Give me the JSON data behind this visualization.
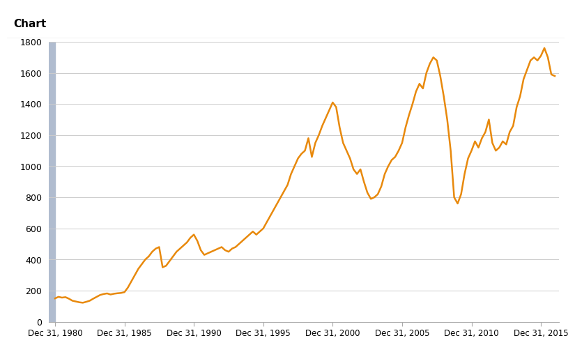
{
  "title": "Chart",
  "title_fontsize": 11,
  "line_color": "#E8890C",
  "line_width": 1.8,
  "background_color": "#FFFFFF",
  "plot_bg_color": "#FFFFFF",
  "header_bg_color": "#E2E6EA",
  "grid_color": "#CCCCCC",
  "ylim": [
    0,
    1800
  ],
  "yticks": [
    0,
    200,
    400,
    600,
    800,
    1000,
    1200,
    1400,
    1600,
    1800
  ],
  "xtick_labels": [
    "Dec 31, 1980",
    "Dec 31, 1985",
    "Dec 31, 1990",
    "Dec 31, 1995",
    "Dec 31, 2000",
    "Dec 31, 2005",
    "Dec 31, 2010",
    "Dec 31, 2015"
  ],
  "left_bar_color": "#B0BCCF",
  "years": [
    1980.0,
    1980.25,
    1980.5,
    1980.75,
    1981.0,
    1981.25,
    1981.5,
    1981.75,
    1982.0,
    1982.25,
    1982.5,
    1982.75,
    1983.0,
    1983.25,
    1983.5,
    1983.75,
    1984.0,
    1984.25,
    1984.5,
    1984.75,
    1985.0,
    1985.25,
    1985.5,
    1985.75,
    1986.0,
    1986.25,
    1986.5,
    1986.75,
    1987.0,
    1987.25,
    1987.5,
    1987.75,
    1988.0,
    1988.25,
    1988.5,
    1988.75,
    1989.0,
    1989.25,
    1989.5,
    1989.75,
    1990.0,
    1990.25,
    1990.5,
    1990.75,
    1991.0,
    1991.25,
    1991.5,
    1991.75,
    1992.0,
    1992.25,
    1992.5,
    1992.75,
    1993.0,
    1993.25,
    1993.5,
    1993.75,
    1994.0,
    1994.25,
    1994.5,
    1994.75,
    1995.0,
    1995.25,
    1995.5,
    1995.75,
    1996.0,
    1996.25,
    1996.5,
    1996.75,
    1997.0,
    1997.25,
    1997.5,
    1997.75,
    1998.0,
    1998.25,
    1998.5,
    1998.75,
    1999.0,
    1999.25,
    1999.5,
    1999.75,
    2000.0,
    2000.25,
    2000.5,
    2000.75,
    2001.0,
    2001.25,
    2001.5,
    2001.75,
    2002.0,
    2002.25,
    2002.5,
    2002.75,
    2003.0,
    2003.25,
    2003.5,
    2003.75,
    2004.0,
    2004.25,
    2004.5,
    2004.75,
    2005.0,
    2005.25,
    2005.5,
    2005.75,
    2006.0,
    2006.25,
    2006.5,
    2006.75,
    2007.0,
    2007.25,
    2007.5,
    2007.75,
    2008.0,
    2008.25,
    2008.5,
    2008.75,
    2009.0,
    2009.25,
    2009.5,
    2009.75,
    2010.0,
    2010.25,
    2010.5,
    2010.75,
    2011.0,
    2011.25,
    2011.5,
    2011.75,
    2012.0,
    2012.25,
    2012.5,
    2012.75,
    2013.0,
    2013.25,
    2013.5,
    2013.75,
    2014.0,
    2014.25,
    2014.5,
    2014.75,
    2015.0,
    2015.25,
    2015.5,
    2015.75,
    2016.0
  ],
  "values": [
    150,
    160,
    155,
    158,
    148,
    135,
    130,
    125,
    122,
    128,
    135,
    148,
    160,
    172,
    178,
    182,
    175,
    180,
    183,
    185,
    190,
    220,
    260,
    300,
    340,
    370,
    400,
    420,
    450,
    470,
    480,
    350,
    360,
    390,
    420,
    450,
    470,
    490,
    510,
    540,
    560,
    520,
    460,
    430,
    440,
    450,
    460,
    470,
    480,
    460,
    450,
    470,
    480,
    500,
    520,
    540,
    560,
    580,
    560,
    580,
    600,
    640,
    680,
    720,
    760,
    800,
    840,
    880,
    950,
    1000,
    1050,
    1080,
    1100,
    1180,
    1060,
    1150,
    1200,
    1260,
    1310,
    1360,
    1410,
    1380,
    1250,
    1150,
    1100,
    1050,
    980,
    950,
    980,
    900,
    830,
    790,
    800,
    820,
    870,
    950,
    1000,
    1040,
    1060,
    1100,
    1150,
    1250,
    1330,
    1400,
    1480,
    1530,
    1500,
    1600,
    1660,
    1700,
    1680,
    1580,
    1450,
    1300,
    1100,
    800,
    760,
    820,
    950,
    1050,
    1100,
    1160,
    1120,
    1180,
    1220,
    1300,
    1150,
    1100,
    1120,
    1160,
    1140,
    1220,
    1260,
    1380,
    1450,
    1560,
    1620,
    1680,
    1700,
    1680,
    1710,
    1760,
    1700,
    1590,
    1580
  ]
}
